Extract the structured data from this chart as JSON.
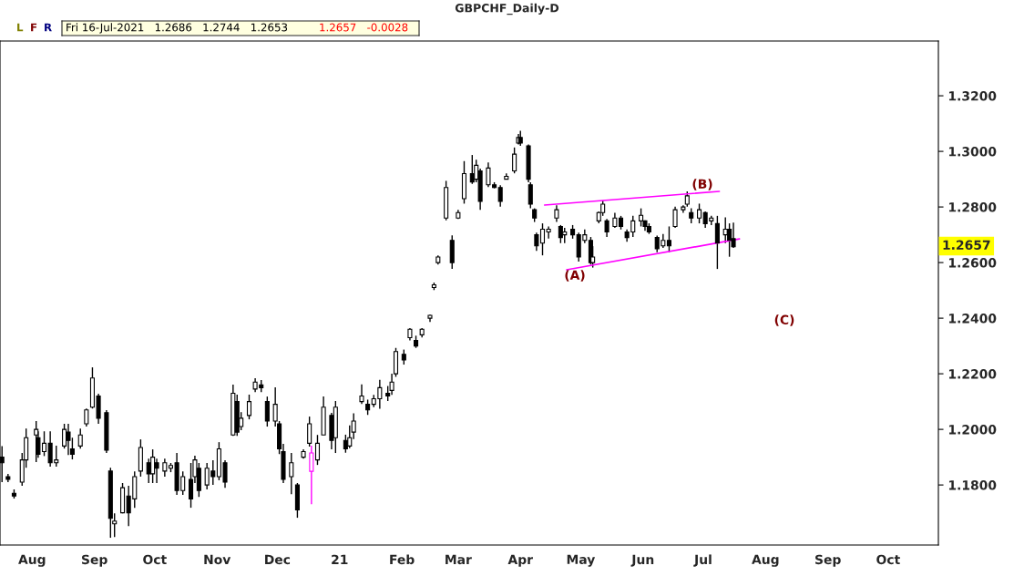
{
  "chart_data": {
    "type": "candlestick",
    "title": "GBPCHF_Daily-D",
    "x": [
      "2020-07-17",
      "2020-07-20",
      "2020-07-23",
      "2020-07-27",
      "2020-07-29",
      "2020-08-03",
      "2020-08-04",
      "2020-08-07",
      "2020-08-10",
      "2020-08-13",
      "2020-08-17",
      "2020-08-19",
      "2020-08-21",
      "2020-08-25",
      "2020-08-28",
      "2020-08-31",
      "2020-09-03",
      "2020-09-07",
      "2020-09-09",
      "2020-09-11",
      "2020-09-15",
      "2020-09-18",
      "2020-09-21",
      "2020-09-24",
      "2020-09-28",
      "2020-09-30",
      "2020-10-02",
      "2020-10-06",
      "2020-10-09",
      "2020-10-12",
      "2020-10-15",
      "2020-10-19",
      "2020-10-21",
      "2020-10-23",
      "2020-10-27",
      "2020-10-30",
      "2020-11-02",
      "2020-11-05",
      "2020-11-09",
      "2020-11-11",
      "2020-11-13",
      "2020-11-17",
      "2020-11-20",
      "2020-11-23",
      "2020-11-26",
      "2020-11-30",
      "2020-12-02",
      "2020-12-04",
      "2020-12-08",
      "2020-12-11",
      "2020-12-14",
      "2020-12-17",
      "2020-12-18",
      "2020-12-21",
      "2020-12-24",
      "2020-12-28",
      "2020-12-30",
      "2021-01-04",
      "2021-01-06",
      "2021-01-08",
      "2021-01-12",
      "2021-01-15",
      "2021-01-18",
      "2021-01-21",
      "2021-01-25",
      "2021-01-27",
      "2021-01-29",
      "2021-02-02",
      "2021-02-05",
      "2021-02-08",
      "2021-02-11",
      "2021-02-15",
      "2021-02-17",
      "2021-02-19",
      "2021-02-23",
      "2021-02-26",
      "2021-03-01",
      "2021-03-04",
      "2021-03-08",
      "2021-03-10",
      "2021-03-12",
      "2021-03-16",
      "2021-03-19",
      "2021-03-22",
      "2021-03-25",
      "2021-03-29",
      "2021-03-31",
      "2021-04-01",
      "2021-04-05",
      "2021-04-06",
      "2021-04-08",
      "2021-04-09",
      "2021-04-12",
      "2021-04-15",
      "2021-04-19",
      "2021-04-21",
      "2021-04-23",
      "2021-04-27",
      "2021-04-30",
      "2021-05-03",
      "2021-05-06",
      "2021-05-07",
      "2021-05-10",
      "2021-05-12",
      "2021-05-14",
      "2021-05-18",
      "2021-05-21",
      "2021-05-24",
      "2021-05-27",
      "2021-05-31",
      "2021-06-02",
      "2021-06-04",
      "2021-06-08",
      "2021-06-11",
      "2021-06-14",
      "2021-06-17",
      "2021-06-21",
      "2021-06-23",
      "2021-06-25",
      "2021-06-29",
      "2021-07-02",
      "2021-07-05",
      "2021-07-08",
      "2021-07-12",
      "2021-07-14",
      "2021-07-16"
    ],
    "ohlc": [
      [
        1.19,
        1.194,
        1.181,
        1.188
      ],
      [
        1.183,
        1.184,
        1.181,
        1.182
      ],
      [
        1.177,
        1.1784,
        1.1751,
        1.176
      ],
      [
        1.181,
        1.1915,
        1.1797,
        1.189
      ],
      [
        1.189,
        1.2003,
        1.1862,
        1.197
      ],
      [
        1.198,
        1.203,
        1.1882,
        1.2
      ],
      [
        1.197,
        1.1993,
        1.1898,
        1.191
      ],
      [
        1.192,
        1.1993,
        1.1904,
        1.195
      ],
      [
        1.195,
        1.1993,
        1.1866,
        1.188
      ],
      [
        1.188,
        1.1941,
        1.1866,
        1.189
      ],
      [
        1.194,
        1.202,
        1.1931,
        1.2
      ],
      [
        1.199,
        1.202,
        1.1908,
        1.196
      ],
      [
        1.193,
        1.197,
        1.1892,
        1.191
      ],
      [
        1.194,
        1.2003,
        1.1931,
        1.198
      ],
      [
        1.202,
        1.2075,
        1.201,
        1.207
      ],
      [
        1.208,
        1.2223,
        1.2075,
        1.2185
      ],
      [
        1.212,
        1.2128,
        1.202,
        1.204
      ],
      [
        1.206,
        1.2069,
        1.1915,
        1.1925
      ],
      [
        1.185,
        1.1862,
        1.161,
        1.168
      ],
      [
        1.166,
        1.1698,
        1.1613,
        1.167
      ],
      [
        1.17,
        1.1807,
        1.1698,
        1.179
      ],
      [
        1.176,
        1.1797,
        1.1652,
        1.17
      ],
      [
        1.175,
        1.1849,
        1.1718,
        1.183
      ],
      [
        1.185,
        1.1964,
        1.183,
        1.1935
      ],
      [
        1.188,
        1.1895,
        1.1807,
        1.184
      ],
      [
        1.184,
        1.1928,
        1.1807,
        1.19
      ],
      [
        1.188,
        1.1895,
        1.1807,
        1.186
      ],
      [
        1.185,
        1.1895,
        1.183,
        1.188
      ],
      [
        1.186,
        1.1879,
        1.1846,
        1.187
      ],
      [
        1.188,
        1.1915,
        1.1764,
        1.178
      ],
      [
        1.178,
        1.1849,
        1.1764,
        1.183
      ],
      [
        1.182,
        1.1879,
        1.1718,
        1.175
      ],
      [
        1.183,
        1.1905,
        1.1807,
        1.189
      ],
      [
        1.186,
        1.1879,
        1.1757,
        1.178
      ],
      [
        1.18,
        1.1879,
        1.1784,
        1.186
      ],
      [
        1.185,
        1.1889,
        1.18,
        1.183
      ],
      [
        1.183,
        1.1954,
        1.1817,
        1.193
      ],
      [
        1.188,
        1.1889,
        1.179,
        1.181
      ],
      [
        1.198,
        1.2161,
        1.1977,
        1.213
      ],
      [
        1.21,
        1.2125,
        1.1977,
        1.199
      ],
      [
        1.201,
        1.2062,
        1.1997,
        1.204
      ],
      [
        1.205,
        1.2125,
        1.2036,
        1.21
      ],
      [
        1.2145,
        1.2184,
        1.2134,
        1.217
      ],
      [
        1.216,
        1.2177,
        1.2134,
        1.215
      ],
      [
        1.21,
        1.2118,
        1.201,
        1.203
      ],
      [
        1.203,
        1.2151,
        1.201,
        1.209
      ],
      [
        1.202,
        1.203,
        1.1911,
        1.193
      ],
      [
        1.192,
        1.1948,
        1.1807,
        1.182
      ],
      [
        1.183,
        1.1915,
        1.1767,
        1.188
      ],
      [
        1.18,
        1.1807,
        1.1682,
        1.171
      ],
      [
        1.19,
        1.1928,
        1.1895,
        1.192
      ],
      [
        1.195,
        1.2046,
        1.1938,
        1.202
      ],
      [
        1.1849,
        1.1941,
        1.1731,
        1.1915
      ],
      [
        1.189,
        1.198,
        1.1872,
        1.195
      ],
      [
        1.198,
        1.2118,
        1.198,
        1.208
      ],
      [
        1.205,
        1.2059,
        1.1928,
        1.196
      ],
      [
        1.197,
        1.2102,
        1.1915,
        1.208
      ],
      [
        1.196,
        1.1981,
        1.1916,
        1.193
      ],
      [
        1.194,
        1.2014,
        1.1932,
        1.197
      ],
      [
        1.199,
        1.2058,
        1.1965,
        1.203
      ],
      [
        1.21,
        1.2162,
        1.2091,
        1.212
      ],
      [
        1.209,
        1.2107,
        1.2052,
        1.207
      ],
      [
        1.209,
        1.2124,
        1.208,
        1.211
      ],
      [
        1.211,
        1.2178,
        1.2074,
        1.215
      ],
      [
        1.213,
        1.2156,
        1.2102,
        1.212
      ],
      [
        1.214,
        1.22,
        1.2124,
        1.217
      ],
      [
        1.22,
        1.2293,
        1.2189,
        1.228
      ],
      [
        1.227,
        1.2287,
        1.2233,
        1.225
      ],
      [
        1.233,
        1.2364,
        1.232,
        1.236
      ],
      [
        1.232,
        1.2337,
        1.2293,
        1.23
      ],
      [
        1.234,
        1.2364,
        1.2331,
        1.236
      ],
      [
        1.24,
        1.2413,
        1.2386,
        1.241
      ],
      [
        1.251,
        1.2528,
        1.2501,
        1.252
      ],
      [
        1.26,
        1.2626,
        1.2593,
        1.262
      ],
      [
        1.276,
        1.2894,
        1.2752,
        1.287
      ],
      [
        1.268,
        1.2698,
        1.2577,
        1.26
      ],
      [
        1.276,
        1.279,
        1.2757,
        1.278
      ],
      [
        1.283,
        1.2965,
        1.2812,
        1.292
      ],
      [
        1.292,
        1.2987,
        1.2883,
        1.289
      ],
      [
        1.29,
        1.297,
        1.2889,
        1.295
      ],
      [
        1.293,
        1.2938,
        1.279,
        1.282
      ],
      [
        1.288,
        1.296,
        1.2872,
        1.294
      ],
      [
        1.288,
        1.2889,
        1.2867,
        1.287
      ],
      [
        1.287,
        1.2878,
        1.2801,
        1.282
      ],
      [
        1.29,
        1.2921,
        1.2899,
        1.291
      ],
      [
        1.293,
        1.3014,
        1.2921,
        1.299
      ],
      [
        1.303,
        1.3063,
        1.3025,
        1.305
      ],
      [
        1.305,
        1.3074,
        1.302,
        1.303
      ],
      [
        1.302,
        1.3025,
        1.2889,
        1.29
      ],
      [
        1.288,
        1.2889,
        1.2795,
        1.281
      ],
      [
        1.279,
        1.2795,
        1.2746,
        1.276
      ],
      [
        1.27,
        1.2708,
        1.2642,
        1.266
      ],
      [
        1.267,
        1.2741,
        1.2626,
        1.272
      ],
      [
        1.271,
        1.273,
        1.2686,
        1.272
      ],
      [
        1.276,
        1.2806,
        1.2746,
        1.279
      ],
      [
        1.273,
        1.2735,
        1.267,
        1.269
      ],
      [
        1.27,
        1.2725,
        1.267,
        1.271
      ],
      [
        1.272,
        1.2735,
        1.2686,
        1.27
      ],
      [
        1.27,
        1.2708,
        1.2604,
        1.262
      ],
      [
        1.268,
        1.2719,
        1.267,
        1.27
      ],
      [
        1.268,
        1.2692,
        1.2593,
        1.26
      ],
      [
        1.26,
        1.2659,
        1.2582,
        1.262
      ],
      [
        1.275,
        1.2784,
        1.2741,
        1.278
      ],
      [
        1.278,
        1.2823,
        1.2768,
        1.281
      ],
      [
        1.275,
        1.2757,
        1.2692,
        1.271
      ],
      [
        1.273,
        1.2779,
        1.2725,
        1.276
      ],
      [
        1.276,
        1.2768,
        1.2719,
        1.273
      ],
      [
        1.271,
        1.2719,
        1.2675,
        1.269
      ],
      [
        1.271,
        1.2768,
        1.2692,
        1.275
      ],
      [
        1.275,
        1.2795,
        1.273,
        1.277
      ],
      [
        1.275,
        1.2752,
        1.2714,
        1.273
      ],
      [
        1.273,
        1.2741,
        1.2703,
        1.271
      ],
      [
        1.269,
        1.2697,
        1.2637,
        1.265
      ],
      [
        1.266,
        1.2703,
        1.2653,
        1.268
      ],
      [
        1.268,
        1.273,
        1.2637,
        1.266
      ],
      [
        1.273,
        1.2801,
        1.2725,
        1.279
      ],
      [
        1.279,
        1.2806,
        1.2779,
        1.28
      ],
      [
        1.281,
        1.2856,
        1.2801,
        1.284
      ],
      [
        1.278,
        1.2795,
        1.2741,
        1.276
      ],
      [
        1.276,
        1.2812,
        1.2741,
        1.279
      ],
      [
        1.278,
        1.2784,
        1.2725,
        1.274
      ],
      [
        1.275,
        1.2768,
        1.2735,
        1.276
      ],
      [
        1.274,
        1.2768,
        1.2577,
        1.267
      ],
      [
        1.27,
        1.2763,
        1.267,
        1.272
      ],
      [
        1.272,
        1.2741,
        1.2621,
        1.268
      ],
      [
        1.2686,
        1.2744,
        1.2653,
        1.2657
      ]
    ],
    "colors": [
      "#000000",
      "#000000",
      "#000000",
      "#000000",
      "#000000",
      "#000000",
      "#000000",
      "#000000",
      "#000000",
      "#000000",
      "#000000",
      "#000000",
      "#000000",
      "#000000",
      "#000000",
      "#000000",
      "#000000",
      "#000000",
      "#000000",
      "#000000",
      "#000000",
      "#000000",
      "#000000",
      "#000000",
      "#000000",
      "#000000",
      "#000000",
      "#000000",
      "#000000",
      "#000000",
      "#000000",
      "#000000",
      "#000000",
      "#000000",
      "#000000",
      "#000000",
      "#000000",
      "#000000",
      "#000000",
      "#000000",
      "#000000",
      "#000000",
      "#000000",
      "#000000",
      "#000000",
      "#000000",
      "#000000",
      "#000000",
      "#000000",
      "#000000",
      "#000000",
      "#000000",
      "#ff00ff",
      "#000000",
      "#000000",
      "#000000",
      "#000000",
      "#000000",
      "#000000",
      "#000000",
      "#000000",
      "#000000",
      "#000000",
      "#000000",
      "#000000",
      "#000000",
      "#000000",
      "#000000",
      "#000000",
      "#000000",
      "#000000",
      "#000000",
      "#000000",
      "#000000",
      "#000000",
      "#000000",
      "#000000",
      "#000000",
      "#000000",
      "#000000",
      "#000000",
      "#000000",
      "#000000",
      "#000000",
      "#000000",
      "#000000",
      "#000000",
      "#000000",
      "#000000",
      "#000000",
      "#000000",
      "#000000",
      "#000000",
      "#000000",
      "#000000",
      "#000000",
      "#000000",
      "#000000",
      "#000000",
      "#000000",
      "#000000",
      "#000000",
      "#000000",
      "#000000",
      "#000000",
      "#000000",
      "#000000",
      "#000000",
      "#000000",
      "#000000",
      "#000000",
      "#000000",
      "#000000",
      "#000000",
      "#000000",
      "#000000",
      "#000000",
      "#000000",
      "#000000",
      "#000000",
      "#000000",
      "#000000",
      "#000000",
      "#000000",
      "#000000",
      "#000000"
    ],
    "series": [
      {
        "type": "line",
        "color": "#ff00ff",
        "x": [
          "2021-04-13",
          "2021-07-09"
        ],
        "values": [
          1.2807,
          1.2856
        ]
      },
      {
        "type": "line",
        "color": "#ff00ff",
        "x": [
          "2021-04-24",
          "2021-07-19"
        ],
        "values": [
          1.2574,
          1.2685
        ]
      }
    ],
    "annotations": [
      "(A)",
      "(B)",
      "(C)",
      "L",
      "F",
      "R",
      "Fri 16-Jul-2021   1.2686   1.2744   1.2653",
      "1.2657   -0.0028",
      "1.2657"
    ],
    "xlim": [
      "2020-07-16",
      "2021-10-26"
    ],
    "xticks": [
      {
        "value": "2020-08-01",
        "label": "Aug"
      },
      {
        "value": "2020-09-01",
        "label": "Sep"
      },
      {
        "value": "2020-10-01",
        "label": "Oct"
      },
      {
        "value": "2020-11-01",
        "label": "Nov"
      },
      {
        "value": "2020-12-01",
        "label": "Dec"
      },
      {
        "value": "2021-01-01",
        "label": "21"
      },
      {
        "value": "2021-02-01",
        "label": "Feb"
      },
      {
        "value": "2021-03-01",
        "label": "Mar"
      },
      {
        "value": "2021-04-01",
        "label": "Apr"
      },
      {
        "value": "2021-05-01",
        "label": "May"
      },
      {
        "value": "2021-06-01",
        "label": "Jun"
      },
      {
        "value": "2021-07-01",
        "label": "Jul"
      },
      {
        "value": "2021-08-01",
        "label": "Aug"
      },
      {
        "value": "2021-09-01",
        "label": "Sep"
      },
      {
        "value": "2021-10-01",
        "label": "Oct"
      }
    ],
    "ylim": [
      1.1584,
      1.3397
    ],
    "yticks": [
      {
        "value": 1.18,
        "label": "1.1800"
      },
      {
        "value": 1.2,
        "label": "1.2000"
      },
      {
        "value": 1.22,
        "label": "1.2200"
      },
      {
        "value": 1.24,
        "label": "1.2400"
      },
      {
        "value": 1.26,
        "label": "1.2600"
      },
      {
        "value": 1.28,
        "label": "1.2800"
      },
      {
        "value": 1.3,
        "label": "1.3000"
      },
      {
        "value": 1.32,
        "label": "1.3200"
      }
    ],
    "grid": false,
    "legend": false
  }
}
